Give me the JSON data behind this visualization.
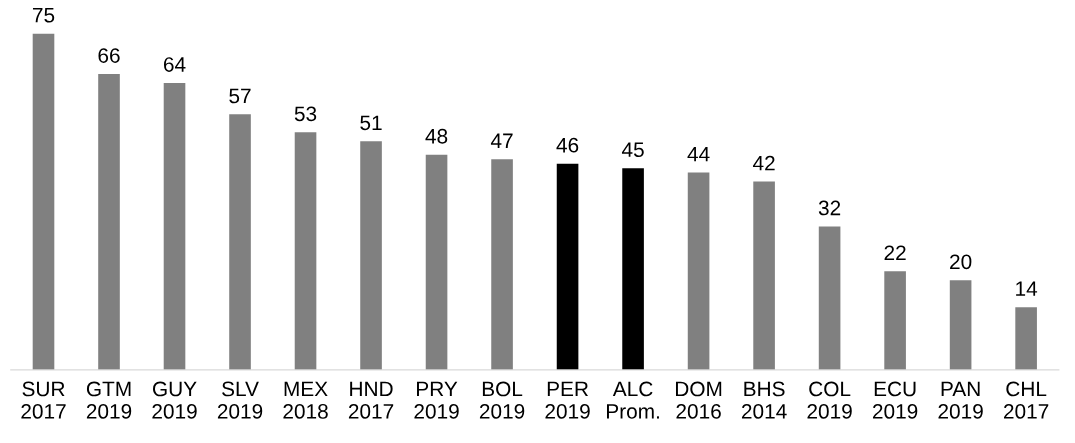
{
  "chart_data": {
    "type": "bar",
    "categories": [
      "SUR\n2017",
      "GTM\n2019",
      "GUY\n2019",
      "SLV\n2019",
      "MEX\n2018",
      "HND\n2017",
      "PRY\n2019",
      "BOL\n2019",
      "PER\n2019",
      "ALC\nProm.",
      "DOM\n2016",
      "BHS\n2014",
      "COL\n2019",
      "ECU\n2019",
      "PAN\n2019",
      "CHL\n2017"
    ],
    "values": [
      75,
      66,
      64,
      57,
      53,
      51,
      48,
      47,
      46,
      45,
      44,
      42,
      32,
      22,
      20,
      14
    ],
    "colors": [
      "#808080",
      "#808080",
      "#808080",
      "#808080",
      "#808080",
      "#808080",
      "#808080",
      "#808080",
      "#000000",
      "#000000",
      "#808080",
      "#808080",
      "#808080",
      "#808080",
      "#808080",
      "#808080"
    ],
    "data_labels": true,
    "grid": false,
    "legend": false
  }
}
